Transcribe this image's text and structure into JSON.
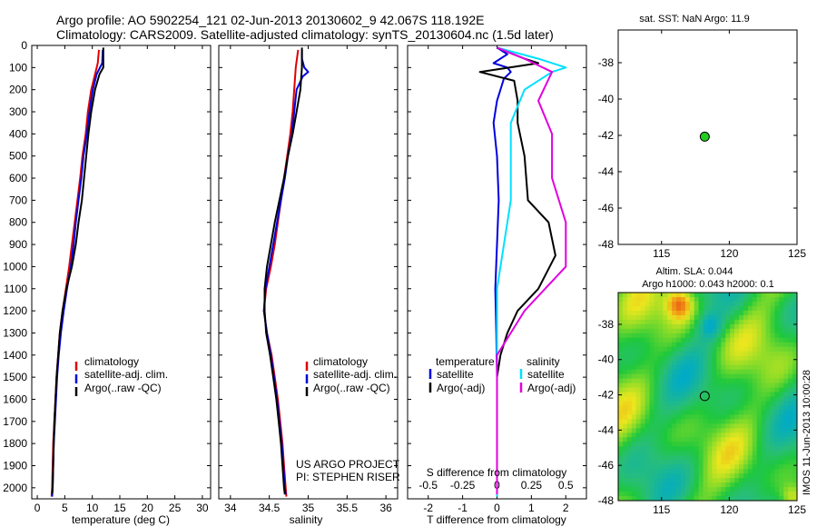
{
  "header": {
    "line1": "Argo profile: AO 5902254_121 02-Jun-2013 20130602_9 42.067S 118.192E",
    "line2": "Climatology: CARS2009. Satellite-adjusted climatology: synTS_20130604.nc (1.5d later)"
  },
  "colors": {
    "climatology": "#e00000",
    "satellite": "#0000e0",
    "argo": "#000000",
    "sal_satellite": "#00e0ff",
    "sal_argo": "#e000e0",
    "marker": "#22cc22"
  },
  "chart_data": [
    {
      "type": "line",
      "xlabel": "temperature (deg C)",
      "xlim": [
        -1,
        31.5
      ],
      "xticks": [
        0,
        5,
        10,
        15,
        20,
        25,
        30
      ],
      "ylim": [
        2050,
        0
      ],
      "yticks": [
        0,
        100,
        200,
        300,
        400,
        500,
        600,
        700,
        800,
        900,
        1000,
        1100,
        1200,
        1300,
        1400,
        1500,
        1600,
        1700,
        1800,
        1900,
        2000
      ],
      "legend": [
        "climatology",
        "satellite-adj. clim.",
        "Argo(..raw -QC)"
      ],
      "series": [
        {
          "name": "climatology",
          "color": "#e00000",
          "points": [
            [
              11.2,
              20
            ],
            [
              11.0,
              80
            ],
            [
              10.6,
              120
            ],
            [
              9.8,
              200
            ],
            [
              9.2,
              300
            ],
            [
              8.8,
              400
            ],
            [
              8.2,
              500
            ],
            [
              7.8,
              600
            ],
            [
              7.3,
              700
            ],
            [
              6.8,
              800
            ],
            [
              6.3,
              900
            ],
            [
              5.8,
              1000
            ],
            [
              5.2,
              1100
            ],
            [
              4.6,
              1200
            ],
            [
              4.1,
              1300
            ],
            [
              3.8,
              1400
            ],
            [
              3.5,
              1500
            ],
            [
              3.3,
              1600
            ],
            [
              3.1,
              1700
            ],
            [
              2.9,
              1800
            ],
            [
              2.8,
              1900
            ],
            [
              2.7,
              2000
            ],
            [
              2.6,
              2040
            ]
          ]
        },
        {
          "name": "satellite-adj. clim.",
          "color": "#0000e0",
          "points": [
            [
              11.9,
              20
            ],
            [
              11.8,
              80
            ],
            [
              10.8,
              130
            ],
            [
              10.1,
              200
            ],
            [
              9.5,
              300
            ],
            [
              9.0,
              400
            ],
            [
              8.4,
              500
            ],
            [
              8.0,
              600
            ],
            [
              7.5,
              700
            ],
            [
              7.0,
              800
            ],
            [
              6.6,
              900
            ],
            [
              6.1,
              1000
            ],
            [
              5.4,
              1100
            ],
            [
              4.8,
              1200
            ],
            [
              4.3,
              1300
            ],
            [
              3.9,
              1400
            ],
            [
              3.6,
              1500
            ],
            [
              3.4,
              1600
            ],
            [
              3.2,
              1700
            ],
            [
              3.0,
              1800
            ],
            [
              2.9,
              1900
            ],
            [
              2.8,
              2000
            ],
            [
              2.7,
              2040
            ]
          ]
        },
        {
          "name": "Argo(..raw -QC)",
          "color": "#000000",
          "points": [
            [
              12.0,
              10
            ],
            [
              12.0,
              100
            ],
            [
              11.3,
              130
            ],
            [
              10.5,
              200
            ],
            [
              9.8,
              300
            ],
            [
              9.3,
              400
            ],
            [
              8.9,
              500
            ],
            [
              8.5,
              600
            ],
            [
              8.1,
              700
            ],
            [
              7.5,
              800
            ],
            [
              7.0,
              900
            ],
            [
              6.3,
              1000
            ],
            [
              5.3,
              1100
            ],
            [
              4.6,
              1200
            ],
            [
              4.1,
              1300
            ],
            [
              3.8,
              1400
            ],
            [
              3.5,
              1500
            ],
            [
              3.3,
              1600
            ],
            [
              3.1,
              1700
            ],
            [
              3.0,
              1800
            ],
            [
              2.9,
              1900
            ],
            [
              2.8,
              2000
            ],
            [
              2.7,
              2030
            ]
          ]
        }
      ]
    },
    {
      "type": "line",
      "xlabel": "salinity",
      "xlim": [
        33.85,
        36.15
      ],
      "xticks": [
        34,
        34.5,
        35,
        35.5,
        36
      ],
      "xticklabels": [
        "34",
        "34.5",
        "35",
        "35.5",
        "36"
      ],
      "ylim": [
        2050,
        0
      ],
      "legend": [
        "climatology",
        "satellite-adj. clim.",
        "Argo(..raw -QC)"
      ],
      "annotation": [
        "US ARGO PROJECT",
        "PI: STEPHEN RISER"
      ],
      "series": [
        {
          "name": "climatology",
          "color": "#e00000",
          "points": [
            [
              34.87,
              20
            ],
            [
              34.84,
              100
            ],
            [
              34.82,
              200
            ],
            [
              34.8,
              300
            ],
            [
              34.77,
              400
            ],
            [
              34.73,
              500
            ],
            [
              34.69,
              600
            ],
            [
              34.65,
              700
            ],
            [
              34.61,
              800
            ],
            [
              34.57,
              900
            ],
            [
              34.52,
              1000
            ],
            [
              34.46,
              1100
            ],
            [
              34.43,
              1200
            ],
            [
              34.47,
              1300
            ],
            [
              34.53,
              1400
            ],
            [
              34.57,
              1500
            ],
            [
              34.61,
              1600
            ],
            [
              34.64,
              1700
            ],
            [
              34.67,
              1800
            ],
            [
              34.69,
              1900
            ],
            [
              34.71,
              2000
            ],
            [
              34.72,
              2040
            ]
          ]
        },
        {
          "name": "satellite-adj. clim.",
          "color": "#0000e0",
          "points": [
            [
              34.92,
              20
            ],
            [
              34.92,
              60
            ],
            [
              34.95,
              100
            ],
            [
              35.0,
              120
            ],
            [
              34.93,
              140
            ],
            [
              34.85,
              200
            ],
            [
              34.82,
              300
            ],
            [
              34.79,
              400
            ],
            [
              34.74,
              500
            ],
            [
              34.7,
              600
            ],
            [
              34.65,
              700
            ],
            [
              34.6,
              800
            ],
            [
              34.55,
              900
            ],
            [
              34.5,
              1000
            ],
            [
              34.45,
              1100
            ],
            [
              34.43,
              1200
            ],
            [
              34.47,
              1300
            ],
            [
              34.52,
              1400
            ],
            [
              34.56,
              1500
            ],
            [
              34.6,
              1600
            ],
            [
              34.63,
              1700
            ],
            [
              34.66,
              1800
            ],
            [
              34.68,
              1900
            ],
            [
              34.7,
              2000
            ],
            [
              34.71,
              2030
            ]
          ]
        },
        {
          "name": "Argo(..raw -QC)",
          "color": "#000000",
          "points": [
            [
              34.92,
              10
            ],
            [
              34.92,
              100
            ],
            [
              34.9,
              200
            ],
            [
              34.85,
              300
            ],
            [
              34.8,
              400
            ],
            [
              34.74,
              500
            ],
            [
              34.69,
              600
            ],
            [
              34.63,
              700
            ],
            [
              34.57,
              800
            ],
            [
              34.52,
              900
            ],
            [
              34.47,
              1000
            ],
            [
              34.44,
              1100
            ],
            [
              34.44,
              1200
            ],
            [
              34.46,
              1300
            ],
            [
              34.51,
              1400
            ],
            [
              34.55,
              1500
            ],
            [
              34.59,
              1600
            ],
            [
              34.62,
              1700
            ],
            [
              34.65,
              1800
            ],
            [
              34.67,
              1900
            ],
            [
              34.69,
              2000
            ],
            [
              34.7,
              2030
            ]
          ]
        }
      ]
    },
    {
      "type": "line",
      "xlabel": "T difference from climatology",
      "xlabel_top": "S difference from climatology",
      "xlim": [
        -2.6,
        2.6
      ],
      "xticks": [
        -2,
        -1,
        0,
        1,
        2
      ],
      "xticks_top": [
        -0.5,
        -0.25,
        0,
        0.25,
        0.5
      ],
      "ylim": [
        2050,
        0
      ],
      "legend_left_title": "temperature",
      "legend_left": [
        "satellite",
        "Argo(-adj)"
      ],
      "legend_right_title": "salinity",
      "legend_right": [
        "satellite",
        "Argo(-adj)"
      ],
      "series": [
        {
          "name": "temperature satellite",
          "color": "#0000e0",
          "points": [
            [
              0,
              10
            ],
            [
              0.3,
              40
            ],
            [
              -0.1,
              80
            ],
            [
              0.3,
              100
            ],
            [
              0.4,
              120
            ],
            [
              0.2,
              150
            ],
            [
              0.0,
              250
            ],
            [
              -0.1,
              350
            ],
            [
              0.0,
              500
            ],
            [
              0.05,
              700
            ],
            [
              0.0,
              900
            ],
            [
              -0.05,
              1100
            ],
            [
              -0.02,
              1300
            ],
            [
              0.0,
              1500
            ],
            [
              0.0,
              1700
            ],
            [
              0.0,
              1900
            ],
            [
              0.0,
              2040
            ]
          ]
        },
        {
          "name": "temperature Argo(-adj)",
          "color": "#000000",
          "points": [
            [
              0.0,
              10
            ],
            [
              0.8,
              60
            ],
            [
              1.2,
              80
            ],
            [
              -0.5,
              120
            ],
            [
              0.5,
              160
            ],
            [
              0.6,
              250
            ],
            [
              0.6,
              350
            ],
            [
              0.8,
              500
            ],
            [
              0.9,
              700
            ],
            [
              1.5,
              800
            ],
            [
              1.7,
              950
            ],
            [
              1.2,
              1100
            ],
            [
              0.6,
              1200
            ],
            [
              0.3,
              1300
            ],
            [
              0.1,
              1400
            ],
            [
              0.0,
              1500
            ],
            [
              0.0,
              1700
            ],
            [
              0.0,
              1900
            ],
            [
              0.0,
              2030
            ]
          ]
        },
        {
          "name": "salinity satellite",
          "color": "#00e0ff",
          "points": [
            [
              0.0,
              10
            ],
            [
              0.3,
              60
            ],
            [
              0.5,
              100
            ],
            [
              0.4,
              120
            ],
            [
              0.2,
              200
            ],
            [
              0.1,
              350
            ],
            [
              0.1,
              500
            ],
            [
              0.1,
              700
            ],
            [
              0.05,
              900
            ],
            [
              0.0,
              1100
            ],
            [
              0.0,
              1300
            ],
            [
              0.0,
              1500
            ],
            [
              0.0,
              1800
            ],
            [
              0.0,
              2040
            ]
          ]
        },
        {
          "name": "salinity Argo(-adj)",
          "color": "#e000e0",
          "points": [
            [
              0.0,
              10
            ],
            [
              0.2,
              60
            ],
            [
              0.4,
              120
            ],
            [
              0.3,
              250
            ],
            [
              0.4,
              400
            ],
            [
              0.4,
              600
            ],
            [
              0.5,
              800
            ],
            [
              0.5,
              1000
            ],
            [
              0.2,
              1200
            ],
            [
              0.0,
              1400
            ],
            [
              0.0,
              1600
            ],
            [
              0.0,
              1900
            ],
            [
              0.0,
              2030
            ]
          ]
        }
      ]
    },
    {
      "type": "scatter",
      "title": "sat. SST: NaN Argo: 11.9",
      "xlim": [
        111.8,
        125
      ],
      "ylim": [
        -48,
        -36.2
      ],
      "xticks": [
        115,
        120,
        125
      ],
      "yticks": [
        -38,
        -40,
        -42,
        -44,
        -46,
        -48
      ],
      "points": [
        [
          118.19,
          -42.07
        ]
      ]
    },
    {
      "type": "heatmap",
      "title": "Altim. SLA: 0.044",
      "subtitle": "Argo h1000: 0.043 h2000: 0.1",
      "side_label": "IMOS 11-Jun-2013 10:00:28",
      "xlim": [
        111.8,
        125
      ],
      "ylim": [
        -48,
        -36.2
      ],
      "xticks": [
        115,
        120,
        125
      ],
      "yticks": [
        -38,
        -40,
        -42,
        -44,
        -46,
        -48
      ],
      "points": [
        [
          118.19,
          -42.07
        ]
      ]
    }
  ]
}
